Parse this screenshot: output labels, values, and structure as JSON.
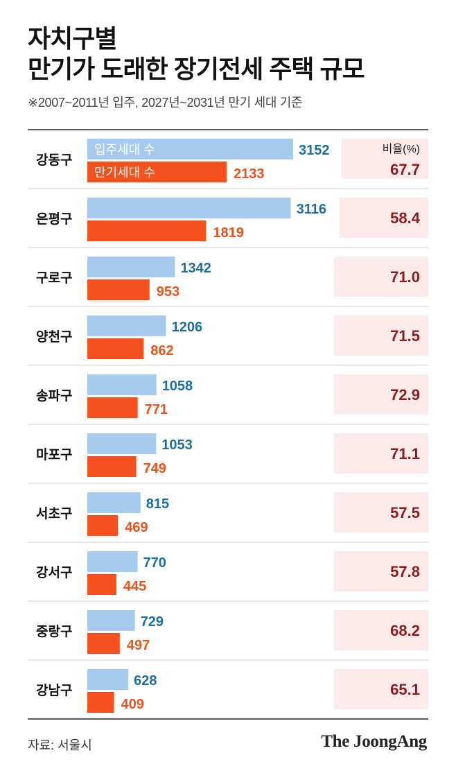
{
  "title_lines": [
    "자치구별",
    "만기가 도래한 장기전세 주택 규모"
  ],
  "subtitle": "※2007~2011년 입주, 2027년~2031년 만기 세대 기준",
  "source": "자료: 서울시",
  "brand": "The JoongAng",
  "colors": {
    "move_in": "#a7cbee",
    "expiring": "#f4511e",
    "move_in_label": "#1f6e9e",
    "expiring_label": "#e8541c",
    "ratio_box": "#fbeaea",
    "ratio_text": "#8b1d1d"
  },
  "chart_data": {
    "type": "bar",
    "orientation": "horizontal",
    "categories": [
      "강동구",
      "은평구",
      "구로구",
      "양천구",
      "송파구",
      "마포구",
      "서초구",
      "강서구",
      "중랑구",
      "강남구"
    ],
    "series": [
      {
        "name": "입주세대 수",
        "values": [
          3152,
          3116,
          1342,
          1206,
          1058,
          1053,
          815,
          770,
          729,
          628
        ]
      },
      {
        "name": "만기세대 수",
        "values": [
          2133,
          1819,
          953,
          862,
          771,
          749,
          469,
          445,
          497,
          409
        ]
      }
    ],
    "ratio": {
      "label": "비율(%)",
      "values": [
        "67.7",
        "58.4",
        "71.0",
        "71.5",
        "72.9",
        "71.1",
        "57.5",
        "57.8",
        "68.2",
        "65.1"
      ]
    },
    "legend": "inside-first-row",
    "grid": false
  }
}
